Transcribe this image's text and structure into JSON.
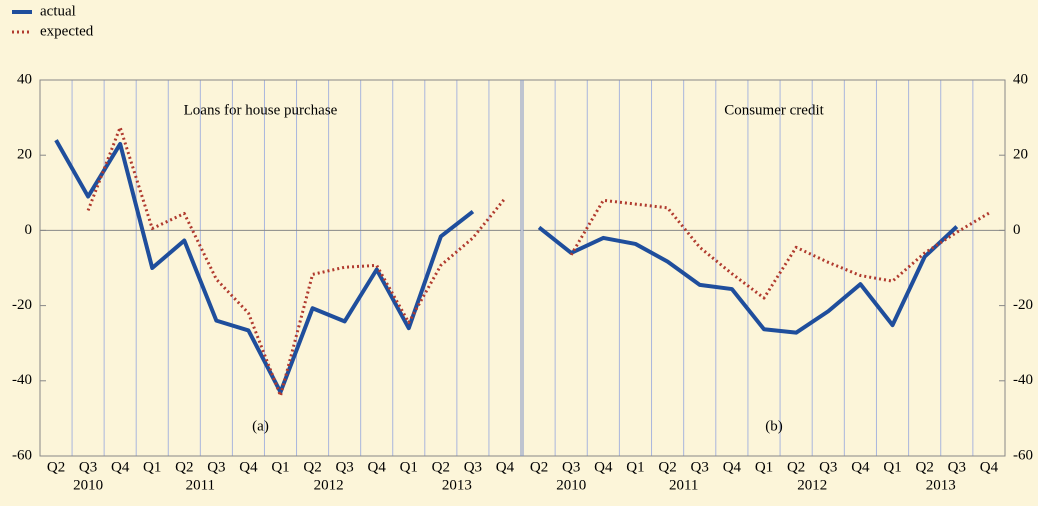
{
  "chart_data": [
    {
      "type": "line",
      "annotation": "Loans for house purchase",
      "label": "(a)",
      "categories": [
        "Q2",
        "Q3",
        "Q4",
        "Q1",
        "Q2",
        "Q3",
        "Q4",
        "Q1",
        "Q2",
        "Q3",
        "Q4",
        "Q1",
        "Q2",
        "Q3",
        "Q4"
      ],
      "years": [
        "2010",
        "2011",
        "2012",
        "2013"
      ],
      "ylim": [
        -60,
        40
      ],
      "yticks": [
        -60,
        -40,
        -20,
        0,
        20,
        40
      ],
      "series": [
        {
          "name": "actual",
          "color": "#1f4e9c",
          "style": "solid",
          "values": [
            24,
            9,
            23,
            -10,
            -2.7,
            -24,
            -26.6,
            -43,
            -20.7,
            -24.2,
            -10.4,
            -26,
            -1.6,
            5,
            null
          ]
        },
        {
          "name": "expected",
          "color": "#b03a2e",
          "style": "dotted",
          "values": [
            null,
            5.3,
            27.4,
            0.5,
            4.5,
            -13,
            -22,
            -44,
            -11.7,
            -9.8,
            -9.3,
            -24.5,
            -9.3,
            -2,
            8.5
          ]
        }
      ]
    },
    {
      "type": "line",
      "annotation": "Consumer credit",
      "label": "(b)",
      "categories": [
        "Q2",
        "Q3",
        "Q4",
        "Q1",
        "Q2",
        "Q3",
        "Q4",
        "Q1",
        "Q2",
        "Q3",
        "Q4",
        "Q1",
        "Q2",
        "Q3",
        "Q4"
      ],
      "years": [
        "2010",
        "2011",
        "2012",
        "2013"
      ],
      "ylim": [
        -60,
        40
      ],
      "yticks": [
        -60,
        -40,
        -20,
        0,
        20,
        40
      ],
      "series": [
        {
          "name": "actual",
          "color": "#1f4e9c",
          "style": "solid",
          "values": [
            0.8,
            -6,
            -2,
            -3.6,
            -8.3,
            -14.5,
            -15.6,
            -26.3,
            -27.2,
            -21.5,
            -14.3,
            -25.2,
            -7,
            1,
            null
          ]
        },
        {
          "name": "expected",
          "color": "#b03a2e",
          "style": "dotted",
          "values": [
            null,
            -6.5,
            8,
            7,
            6,
            -4.5,
            -11.5,
            -18,
            -4.5,
            -8.5,
            -12,
            -13.5,
            -6,
            -0.5,
            4.6
          ]
        }
      ]
    }
  ]
}
